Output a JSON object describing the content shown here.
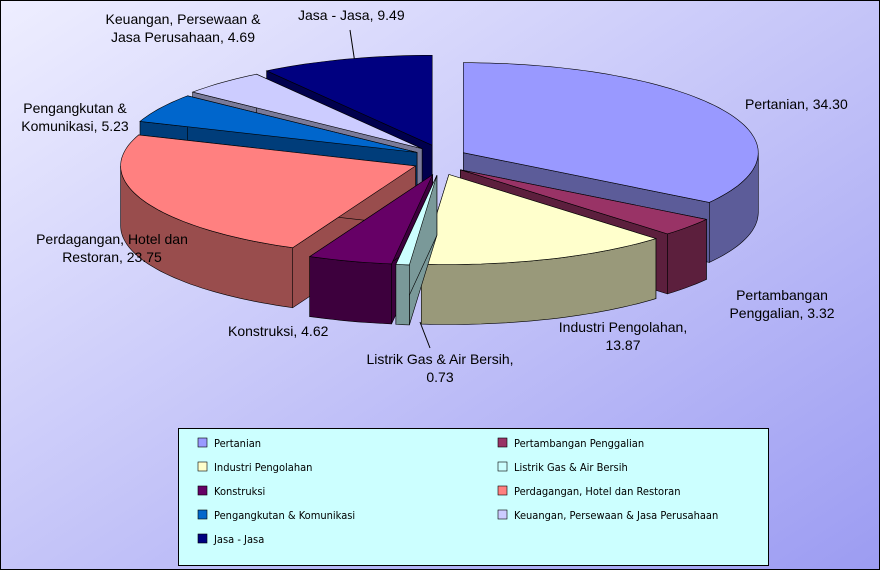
{
  "chart_data": {
    "type": "pie",
    "categories": [
      "Pertanian",
      "Pertambangan Penggalian",
      "Industri Pengolahan",
      "Listrik Gas & Air Bersih",
      "Konstruksi",
      "Perdagangan, Hotel dan Restoran",
      "Pengangkutan & Komunikasi",
      "Keuangan, Persewaan & Jasa Perusahaan",
      "Jasa - Jasa"
    ],
    "values": [
      34.3,
      3.32,
      13.87,
      0.73,
      4.62,
      23.75,
      5.23,
      4.69,
      9.49
    ],
    "value_labels": [
      "Pertanian, 34.30",
      "Pertambangan Penggalian, 3.32",
      "Industri Pengolahan, 13.87",
      "Listrik Gas & Air Bersih, 0.73",
      "Konstruksi, 4.62",
      "Perdagangan, Hotel dan Restoran, 23.75",
      "Pengangkutan & Komunikasi, 5.23",
      "Keuangan, Persewaan & Jasa Perusahaan, 4.69",
      "Jasa - Jasa, 9.49"
    ],
    "colors": [
      "#9999ff",
      "#993366",
      "#ffffcc",
      "#ccffff",
      "#660066",
      "#ff8080",
      "#0066cc",
      "#ccccff",
      "#000080"
    ],
    "legend": "bottom"
  }
}
